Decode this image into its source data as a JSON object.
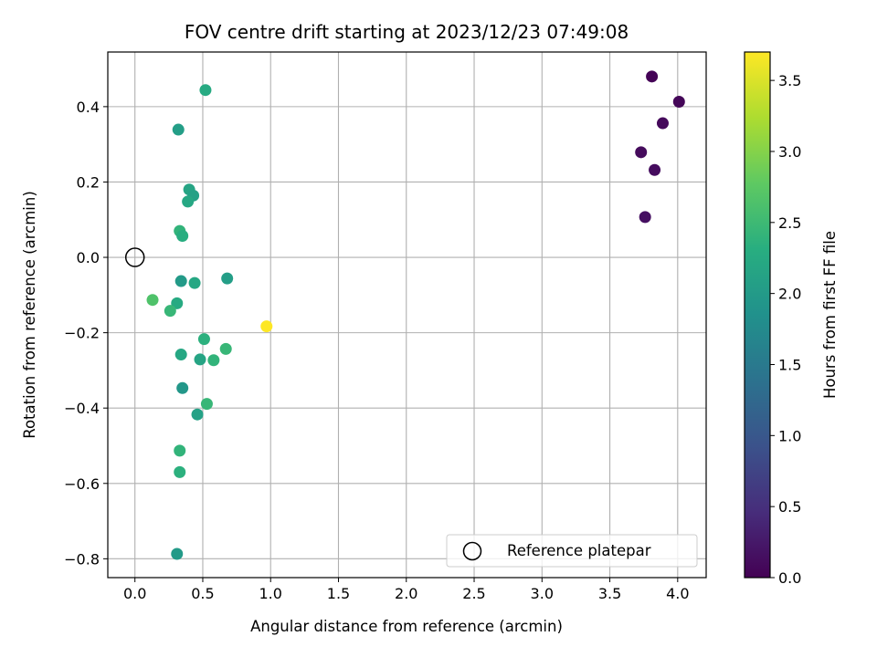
{
  "chart_data": {
    "type": "scatter",
    "title": "FOV centre drift starting at 2023/12/23 07:49:08",
    "xlabel": "Angular distance from reference (arcmin)",
    "ylabel": "Rotation from reference (arcmin)",
    "xlim": [
      -0.2,
      4.21
    ],
    "ylim": [
      -0.85,
      0.545
    ],
    "x_ticks": [
      0.0,
      0.5,
      1.0,
      1.5,
      2.0,
      2.5,
      3.0,
      3.5,
      4.0
    ],
    "x_tick_labels": [
      "0.0",
      "0.5",
      "1.0",
      "1.5",
      "2.0",
      "2.5",
      "3.0",
      "3.5",
      "4.0"
    ],
    "y_ticks": [
      -0.8,
      -0.6,
      -0.4,
      -0.2,
      0.0,
      0.2,
      0.4
    ],
    "y_tick_labels": [
      "−0.8",
      "−0.6",
      "−0.4",
      "−0.2",
      "0.0",
      "0.2",
      "0.4"
    ],
    "grid": true,
    "colorbar": {
      "label": "Hours from first FF file",
      "colormap": "viridis",
      "range": [
        0.0,
        3.7
      ],
      "ticks": [
        0.0,
        0.5,
        1.0,
        1.5,
        2.0,
        2.5,
        3.0,
        3.5
      ],
      "tick_labels": [
        "0.0",
        "0.5",
        "1.0",
        "1.5",
        "2.0",
        "2.5",
        "3.0",
        "3.5"
      ]
    },
    "reference": {
      "x": 0.0,
      "y": 0.0,
      "legend_label": "Reference platepar"
    },
    "legend_position": "lower-right",
    "points": [
      {
        "x": 3.81,
        "y": 0.48,
        "c": 0.02
      },
      {
        "x": 4.01,
        "y": 0.413,
        "c": 0.05
      },
      {
        "x": 3.89,
        "y": 0.356,
        "c": 0.08
      },
      {
        "x": 3.73,
        "y": 0.279,
        "c": 0.1
      },
      {
        "x": 3.83,
        "y": 0.232,
        "c": 0.12
      },
      {
        "x": 3.76,
        "y": 0.107,
        "c": 0.15
      },
      {
        "x": 0.52,
        "y": 0.444,
        "c": 2.25
      },
      {
        "x": 0.32,
        "y": 0.339,
        "c": 2.05
      },
      {
        "x": 0.4,
        "y": 0.18,
        "c": 2.15
      },
      {
        "x": 0.43,
        "y": 0.164,
        "c": 2.1
      },
      {
        "x": 0.39,
        "y": 0.148,
        "c": 2.2
      },
      {
        "x": 0.33,
        "y": 0.07,
        "c": 2.4
      },
      {
        "x": 0.35,
        "y": 0.057,
        "c": 2.3
      },
      {
        "x": 0.34,
        "y": -0.063,
        "c": 2.0
      },
      {
        "x": 0.44,
        "y": -0.068,
        "c": 2.2
      },
      {
        "x": 0.68,
        "y": -0.056,
        "c": 2.05
      },
      {
        "x": 0.13,
        "y": -0.113,
        "c": 2.65
      },
      {
        "x": 0.31,
        "y": -0.122,
        "c": 2.25
      },
      {
        "x": 0.26,
        "y": -0.142,
        "c": 2.45
      },
      {
        "x": 0.97,
        "y": -0.183,
        "c": 3.7
      },
      {
        "x": 0.51,
        "y": -0.217,
        "c": 2.35
      },
      {
        "x": 0.34,
        "y": -0.258,
        "c": 2.2
      },
      {
        "x": 0.67,
        "y": -0.243,
        "c": 2.45
      },
      {
        "x": 0.48,
        "y": -0.271,
        "c": 2.15
      },
      {
        "x": 0.58,
        "y": -0.273,
        "c": 2.4
      },
      {
        "x": 0.35,
        "y": -0.347,
        "c": 1.95
      },
      {
        "x": 0.53,
        "y": -0.389,
        "c": 2.45
      },
      {
        "x": 0.46,
        "y": -0.417,
        "c": 2.1
      },
      {
        "x": 0.33,
        "y": -0.513,
        "c": 2.4
      },
      {
        "x": 0.33,
        "y": -0.57,
        "c": 2.35
      },
      {
        "x": 0.31,
        "y": -0.787,
        "c": 2.0
      }
    ]
  }
}
